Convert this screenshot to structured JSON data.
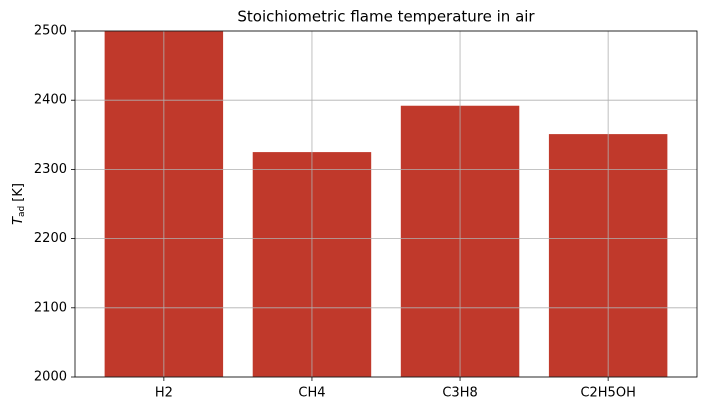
{
  "chart_data": {
    "type": "bar",
    "title": "Stoichiometric flame temperature in air",
    "y_label": {
      "symbol": "T",
      "subscript": "ad",
      "unit": "[K]"
    },
    "categories": [
      "H2",
      "CH4",
      "C3H8",
      "C2H5OH"
    ],
    "values": [
      2500,
      2325,
      2392,
      2351
    ],
    "color": "#c0392b",
    "ylim": [
      2000,
      2500
    ],
    "yticks": [
      2000,
      2100,
      2200,
      2300,
      2400,
      2500
    ],
    "grid": true
  }
}
